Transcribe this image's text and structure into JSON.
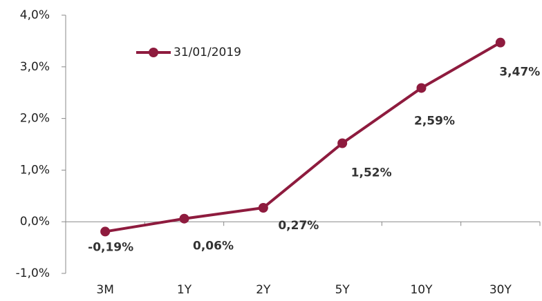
{
  "chart_data": {
    "type": "line",
    "categories": [
      "3M",
      "1Y",
      "2Y",
      "5Y",
      "10Y",
      "30Y"
    ],
    "series": [
      {
        "name": "31/01/2019",
        "color": "#8e1b3e",
        "values": [
          -0.19,
          0.06,
          0.27,
          1.52,
          2.59,
          3.47
        ],
        "value_labels": [
          "-0,19%",
          "0,06%",
          "0,27%",
          "1,52%",
          "2,59%",
          "3,47%"
        ]
      }
    ],
    "ylim": [
      -1,
      4
    ],
    "yticks": [
      {
        "value": -1,
        "label": "-1,0%"
      },
      {
        "value": 0,
        "label": "0,0%"
      },
      {
        "value": 1,
        "label": "1,0%"
      },
      {
        "value": 2,
        "label": "2,0%"
      },
      {
        "value": 3,
        "label": "3,0%"
      },
      {
        "value": 4,
        "label": "4,0%"
      }
    ],
    "legend": "top-left",
    "grid": false
  }
}
